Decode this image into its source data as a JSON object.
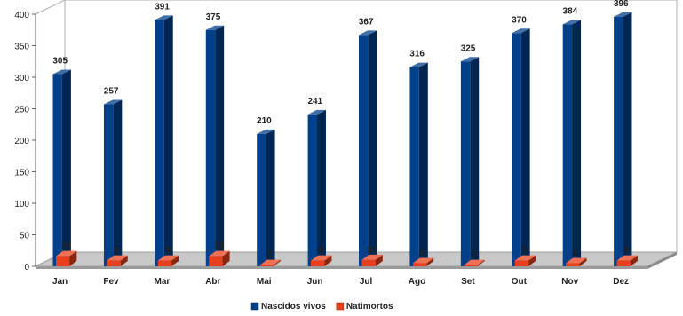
{
  "chart_data": {
    "type": "bar",
    "categories": [
      "Jan",
      "Fev",
      "Mar",
      "Abr",
      "Mai",
      "Jun",
      "Jul",
      "Ago",
      "Set",
      "Out",
      "Nov",
      "Dez"
    ],
    "series": [
      {
        "name": "Nascidos vivos",
        "values": [
          305,
          257,
          391,
          375,
          210,
          241,
          367,
          316,
          325,
          370,
          384,
          396
        ],
        "color": "#003f8a"
      },
      {
        "name": "Natimortos",
        "values": [
          16,
          9,
          9,
          16,
          2,
          9,
          10,
          5,
          2,
          9,
          5,
          9
        ],
        "color": "#e8401c"
      }
    ],
    "ylim": [
      0,
      400
    ],
    "yticks": [
      0,
      50,
      100,
      150,
      200,
      250,
      300,
      350,
      400
    ],
    "grid": false,
    "legend": "bottom-center",
    "style": "3d-bar"
  }
}
